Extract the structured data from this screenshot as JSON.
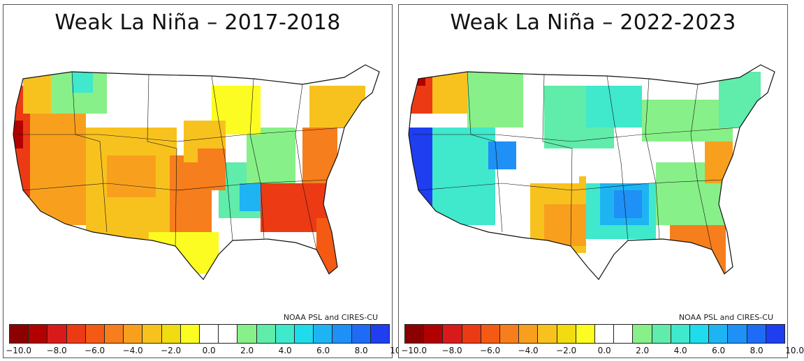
{
  "panels": [
    {
      "title": "Weak La Niña – 2017-2018",
      "credit": "NOAA PSL and CIRES-CU",
      "pattern": "dry-south-wet-ohio-valley"
    },
    {
      "title": "Weak La Niña – 2022-2023",
      "credit": "NOAA PSL and CIRES-CU",
      "pattern": "wet-west-wet-central"
    }
  ],
  "colorbar": {
    "colors": [
      "#8b0000",
      "#b00000",
      "#d81a1a",
      "#ec3a14",
      "#f45a14",
      "#f67e1c",
      "#f8a01e",
      "#f8c21e",
      "#f0dc10",
      "#fcfc22",
      "#ffffff",
      "#ffffff",
      "#88f088",
      "#60ecaa",
      "#40e8cc",
      "#1edcec",
      "#1eb4f4",
      "#1e90f6",
      "#1e6cf6",
      "#1e3ef0"
    ],
    "tick_labels": [
      "−10.0",
      "−8.0",
      "−6.0",
      "−4.0",
      "−2.0",
      "0.0",
      "2.0",
      "4.0",
      "6.0",
      "8.0",
      "10.0"
    ]
  }
}
